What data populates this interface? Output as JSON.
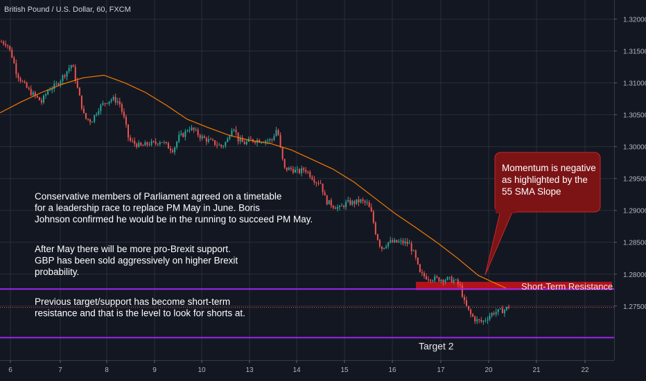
{
  "header": {
    "title": "British Pound / U.S. Dollar, 60, FXCM"
  },
  "colors": {
    "background": "#131722",
    "grid": "#2a2e39",
    "text": "#d1d4dc",
    "axis_text": "#b2b5be",
    "candle_up": "#26a69a",
    "candle_down": "#ef5350",
    "sma": "#f57c00",
    "level_line": "#9c27f0",
    "level_badge": "#8e24e0",
    "price_badge": "#ef5350",
    "resistance_zone": "#d0121b",
    "callout_fill": "#7c1416",
    "callout_border": "#c62828"
  },
  "chart_data": {
    "type": "candlestick",
    "title": "British Pound / U.S. Dollar, 60, FXCM",
    "ylim": [
      1.2665,
      1.323
    ],
    "y_ticks": [
      "1.27500",
      "1.28000",
      "1.28500",
      "1.29000",
      "1.29500",
      "1.30000",
      "1.30500",
      "1.31000",
      "1.31500",
      "1.32000"
    ],
    "x_ticks": [
      "6",
      "7",
      "8",
      "9",
      "10",
      "13",
      "14",
      "15",
      "16",
      "17",
      "20",
      "21",
      "22"
    ],
    "grid": true,
    "candle_path": [
      [
        0,
        1.3165
      ],
      [
        10,
        1.3162
      ],
      [
        18,
        1.314
      ],
      [
        24,
        1.3115
      ],
      [
        34,
        1.3098
      ],
      [
        44,
        1.3085
      ],
      [
        52,
        1.3078
      ],
      [
        60,
        1.307
      ],
      [
        70,
        1.309
      ],
      [
        80,
        1.3095
      ],
      [
        92,
        1.3112
      ],
      [
        104,
        1.313
      ],
      [
        112,
        1.309
      ],
      [
        122,
        1.3045
      ],
      [
        132,
        1.304
      ],
      [
        142,
        1.306
      ],
      [
        152,
        1.307
      ],
      [
        162,
        1.3075
      ],
      [
        172,
        1.307
      ],
      [
        180,
        1.304
      ],
      [
        186,
        1.301
      ],
      [
        194,
        1.3005
      ],
      [
        204,
        1.3
      ],
      [
        214,
        1.3005
      ],
      [
        224,
        1.3005
      ],
      [
        232,
        1.301
      ],
      [
        242,
        1.3
      ],
      [
        250,
        1.2995
      ],
      [
        258,
        1.3015
      ],
      [
        266,
        1.302
      ],
      [
        272,
        1.303
      ],
      [
        280,
        1.3025
      ],
      [
        290,
        1.3015
      ],
      [
        300,
        1.301
      ],
      [
        310,
        1.3005
      ],
      [
        320,
        1.3
      ],
      [
        328,
        1.301
      ],
      [
        336,
        1.3035
      ],
      [
        344,
        1.301
      ],
      [
        352,
        1.3005
      ],
      [
        362,
        1.301
      ],
      [
        372,
        1.301
      ],
      [
        382,
        1.301
      ],
      [
        392,
        1.301
      ],
      [
        400,
        1.303
      ],
      [
        404,
        1.3
      ],
      [
        410,
        1.2965
      ],
      [
        420,
        1.2965
      ],
      [
        430,
        1.296
      ],
      [
        440,
        1.2965
      ],
      [
        448,
        1.2955
      ],
      [
        456,
        1.2945
      ],
      [
        462,
        1.2945
      ],
      [
        470,
        1.2915
      ],
      [
        480,
        1.2908
      ],
      [
        490,
        1.2903
      ],
      [
        500,
        1.2912
      ],
      [
        510,
        1.2912
      ],
      [
        520,
        1.2915
      ],
      [
        530,
        1.291
      ],
      [
        536,
        1.2895
      ],
      [
        542,
        1.2865
      ],
      [
        550,
        1.284
      ],
      [
        560,
        1.285
      ],
      [
        570,
        1.285
      ],
      [
        580,
        1.285
      ],
      [
        590,
        1.2848
      ],
      [
        598,
        1.283
      ],
      [
        606,
        1.28
      ],
      [
        616,
        1.2795
      ],
      [
        626,
        1.2793
      ],
      [
        636,
        1.2792
      ],
      [
        646,
        1.2792
      ],
      [
        656,
        1.279
      ],
      [
        664,
        1.278
      ],
      [
        670,
        1.2755
      ],
      [
        678,
        1.2738
      ],
      [
        686,
        1.2728
      ],
      [
        696,
        1.2725
      ],
      [
        704,
        1.2733
      ],
      [
        712,
        1.274
      ],
      [
        722,
        1.2742
      ],
      [
        730,
        1.2745
      ],
      [
        734,
        1.275
      ]
    ],
    "series": [
      {
        "type": "line",
        "points": [
          [
            0,
            1.3053
          ],
          [
            30,
            1.307
          ],
          [
            60,
            1.3085
          ],
          [
            90,
            1.3098
          ],
          [
            120,
            1.3108
          ],
          [
            150,
            1.3112
          ],
          [
            180,
            1.31
          ],
          [
            210,
            1.3085
          ],
          [
            240,
            1.3065
          ],
          [
            270,
            1.3043
          ],
          [
            300,
            1.303
          ],
          [
            330,
            1.3018
          ],
          [
            360,
            1.301
          ],
          [
            390,
            1.3005
          ],
          [
            420,
            1.2995
          ],
          [
            450,
            1.298
          ],
          [
            480,
            1.2965
          ],
          [
            510,
            1.2945
          ],
          [
            540,
            1.292
          ],
          [
            570,
            1.2895
          ],
          [
            600,
            1.2873
          ],
          [
            630,
            1.285
          ],
          [
            660,
            1.2825
          ],
          [
            690,
            1.2798
          ],
          [
            720,
            1.2783
          ],
          [
            730,
            1.2778
          ]
        ]
      }
    ],
    "levels": [
      {
        "value": 1.27767,
        "label": "1.27767"
      },
      {
        "value": 1.27478,
        "label": "1.27478"
      },
      {
        "value": 1.27004,
        "label": "1.27004"
      }
    ],
    "zone": {
      "y_low": 1.2775,
      "y_high": 1.2788,
      "label": "Short-Term Resistance"
    },
    "target_label": "Target 2",
    "callout": {
      "lines": [
        "Momentum is negative",
        "as highlighted by the",
        "55 SMA Slope"
      ]
    },
    "annotation_1": [
      "Conservative members of Parliament agreed on a timetable",
      "for a leadership race to replace PM May in June. Boris",
      "Johnson confirmed he would be in the running to succeed PM May."
    ],
    "annotation_2": [
      "After May there will be more pro-Brexit support.",
      "GBP has been sold aggressively on higher Brexit",
      "probability."
    ],
    "annotation_3": [
      "Previous target/support has become short-term",
      "resistance and that is the level to look for shorts at."
    ]
  }
}
